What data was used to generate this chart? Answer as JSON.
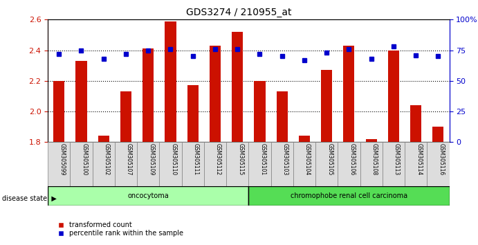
{
  "title": "GDS3274 / 210955_at",
  "samples": [
    "GSM305099",
    "GSM305100",
    "GSM305102",
    "GSM305107",
    "GSM305109",
    "GSM305110",
    "GSM305111",
    "GSM305112",
    "GSM305115",
    "GSM305101",
    "GSM305103",
    "GSM305104",
    "GSM305105",
    "GSM305106",
    "GSM305108",
    "GSM305113",
    "GSM305114",
    "GSM305116"
  ],
  "transformed_counts": [
    2.2,
    2.33,
    1.84,
    2.13,
    2.41,
    2.59,
    2.17,
    2.43,
    2.52,
    2.2,
    2.13,
    1.84,
    2.27,
    2.43,
    1.82,
    2.4,
    2.04,
    1.9
  ],
  "percentile_ranks": [
    72,
    75,
    68,
    72,
    75,
    76,
    70,
    76,
    76,
    72,
    70,
    67,
    73,
    76,
    68,
    78,
    71,
    70
  ],
  "groups": [
    {
      "label": "oncocytoma",
      "start": 0,
      "end": 9,
      "color": "#aaffaa"
    },
    {
      "label": "chromophobe renal cell carcinoma",
      "start": 9,
      "end": 18,
      "color": "#55dd55"
    }
  ],
  "ylim_left": [
    1.8,
    2.6
  ],
  "ylim_right": [
    0,
    100
  ],
  "bar_color": "#cc1100",
  "dot_color": "#0000cc",
  "grid_color": "black",
  "background_color": "white",
  "title_color": "black",
  "left_axis_color": "#cc1100",
  "right_axis_color": "#0000cc",
  "bar_width": 0.5,
  "legend_bar_label": "transformed count",
  "legend_dot_label": "percentile rank within the sample",
  "group_label": "disease state"
}
